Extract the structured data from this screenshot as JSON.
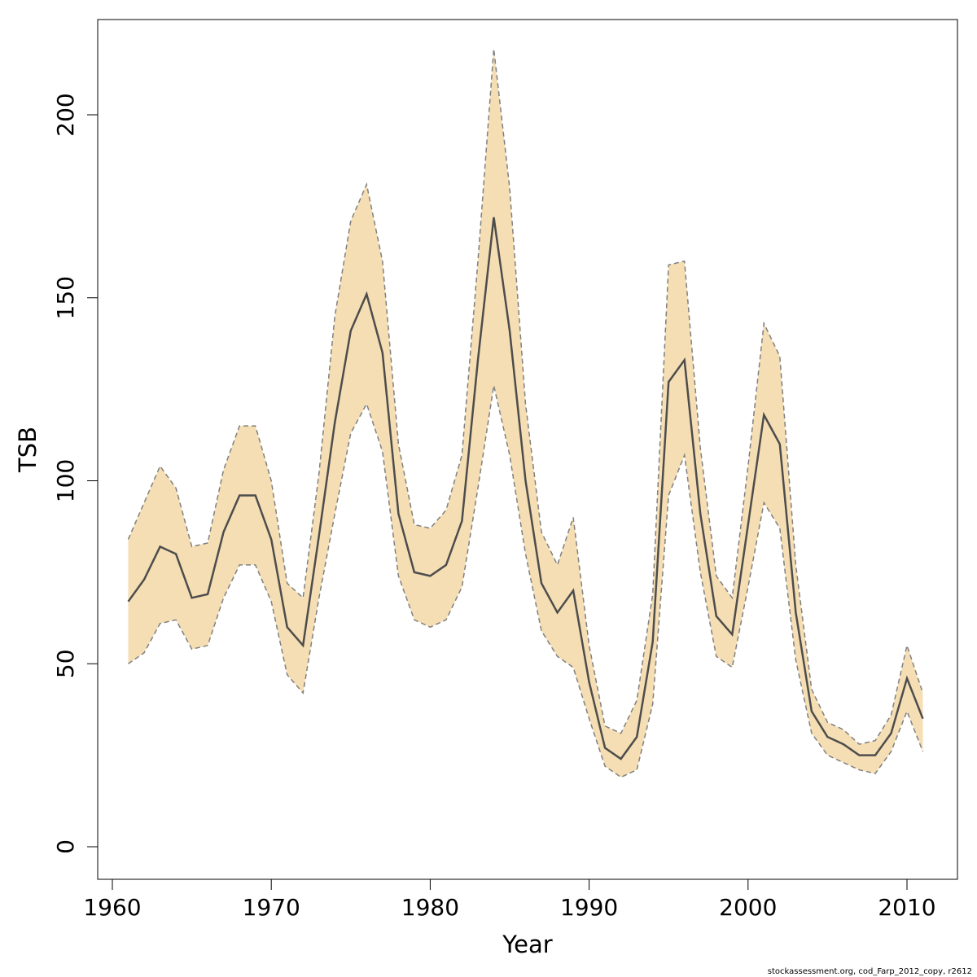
{
  "chart_data": {
    "type": "area",
    "xlabel": "Year",
    "ylabel": "TSB",
    "xlim": [
      1960,
      2012
    ],
    "ylim": [
      0,
      220
    ],
    "x_ticks": [
      1960,
      1970,
      1980,
      1990,
      2000,
      2010
    ],
    "y_ticks": [
      0,
      50,
      100,
      150,
      200
    ],
    "x": [
      1961,
      1962,
      1963,
      1964,
      1965,
      1966,
      1967,
      1968,
      1969,
      1970,
      1971,
      1972,
      1973,
      1974,
      1975,
      1976,
      1977,
      1978,
      1979,
      1980,
      1981,
      1982,
      1983,
      1984,
      1985,
      1986,
      1987,
      1988,
      1989,
      1990,
      1991,
      1992,
      1993,
      1994,
      1995,
      1996,
      1997,
      1998,
      1999,
      2000,
      2001,
      2002,
      2003,
      2004,
      2005,
      2006,
      2007,
      2008,
      2009,
      2010,
      2011
    ],
    "series": [
      {
        "role": "estimate",
        "values": [
          67,
          73,
          82,
          80,
          68,
          69,
          86,
          96,
          96,
          84,
          60,
          55,
          85,
          116,
          141,
          151,
          135,
          91,
          75,
          74,
          77,
          89,
          133,
          172,
          141,
          100,
          72,
          64,
          70,
          45,
          27,
          24,
          30,
          56,
          127,
          133,
          91,
          63,
          58,
          88,
          118,
          110,
          64,
          37,
          30,
          28,
          25,
          25,
          31,
          46,
          35
        ]
      },
      {
        "role": "upper",
        "values": [
          84,
          94,
          104,
          98,
          82,
          83,
          103,
          115,
          115,
          100,
          72,
          68,
          102,
          145,
          171,
          181,
          160,
          110,
          88,
          87,
          92,
          107,
          160,
          218,
          180,
          121,
          86,
          77,
          90,
          55,
          33,
          31,
          40,
          69,
          159,
          160,
          109,
          74,
          68,
          104,
          143,
          134,
          77,
          43,
          34,
          32,
          28,
          29,
          36,
          55,
          42
        ]
      },
      {
        "role": "lower",
        "values": [
          50,
          53,
          61,
          62,
          54,
          55,
          68,
          77,
          77,
          67,
          47,
          42,
          68,
          91,
          113,
          121,
          108,
          74,
          62,
          60,
          62,
          71,
          98,
          126,
          107,
          80,
          59,
          52,
          49,
          35,
          22,
          19,
          21,
          39,
          96,
          107,
          75,
          52,
          49,
          71,
          94,
          87,
          51,
          31,
          25,
          23,
          21,
          20,
          26,
          37,
          26
        ]
      }
    ],
    "colors": {
      "band_fill": "#f5deb3",
      "band_edge": "#808080",
      "line": "#4d4d4d"
    }
  },
  "footer": "stockassessment.org, cod_Farp_2012_copy, r2612"
}
